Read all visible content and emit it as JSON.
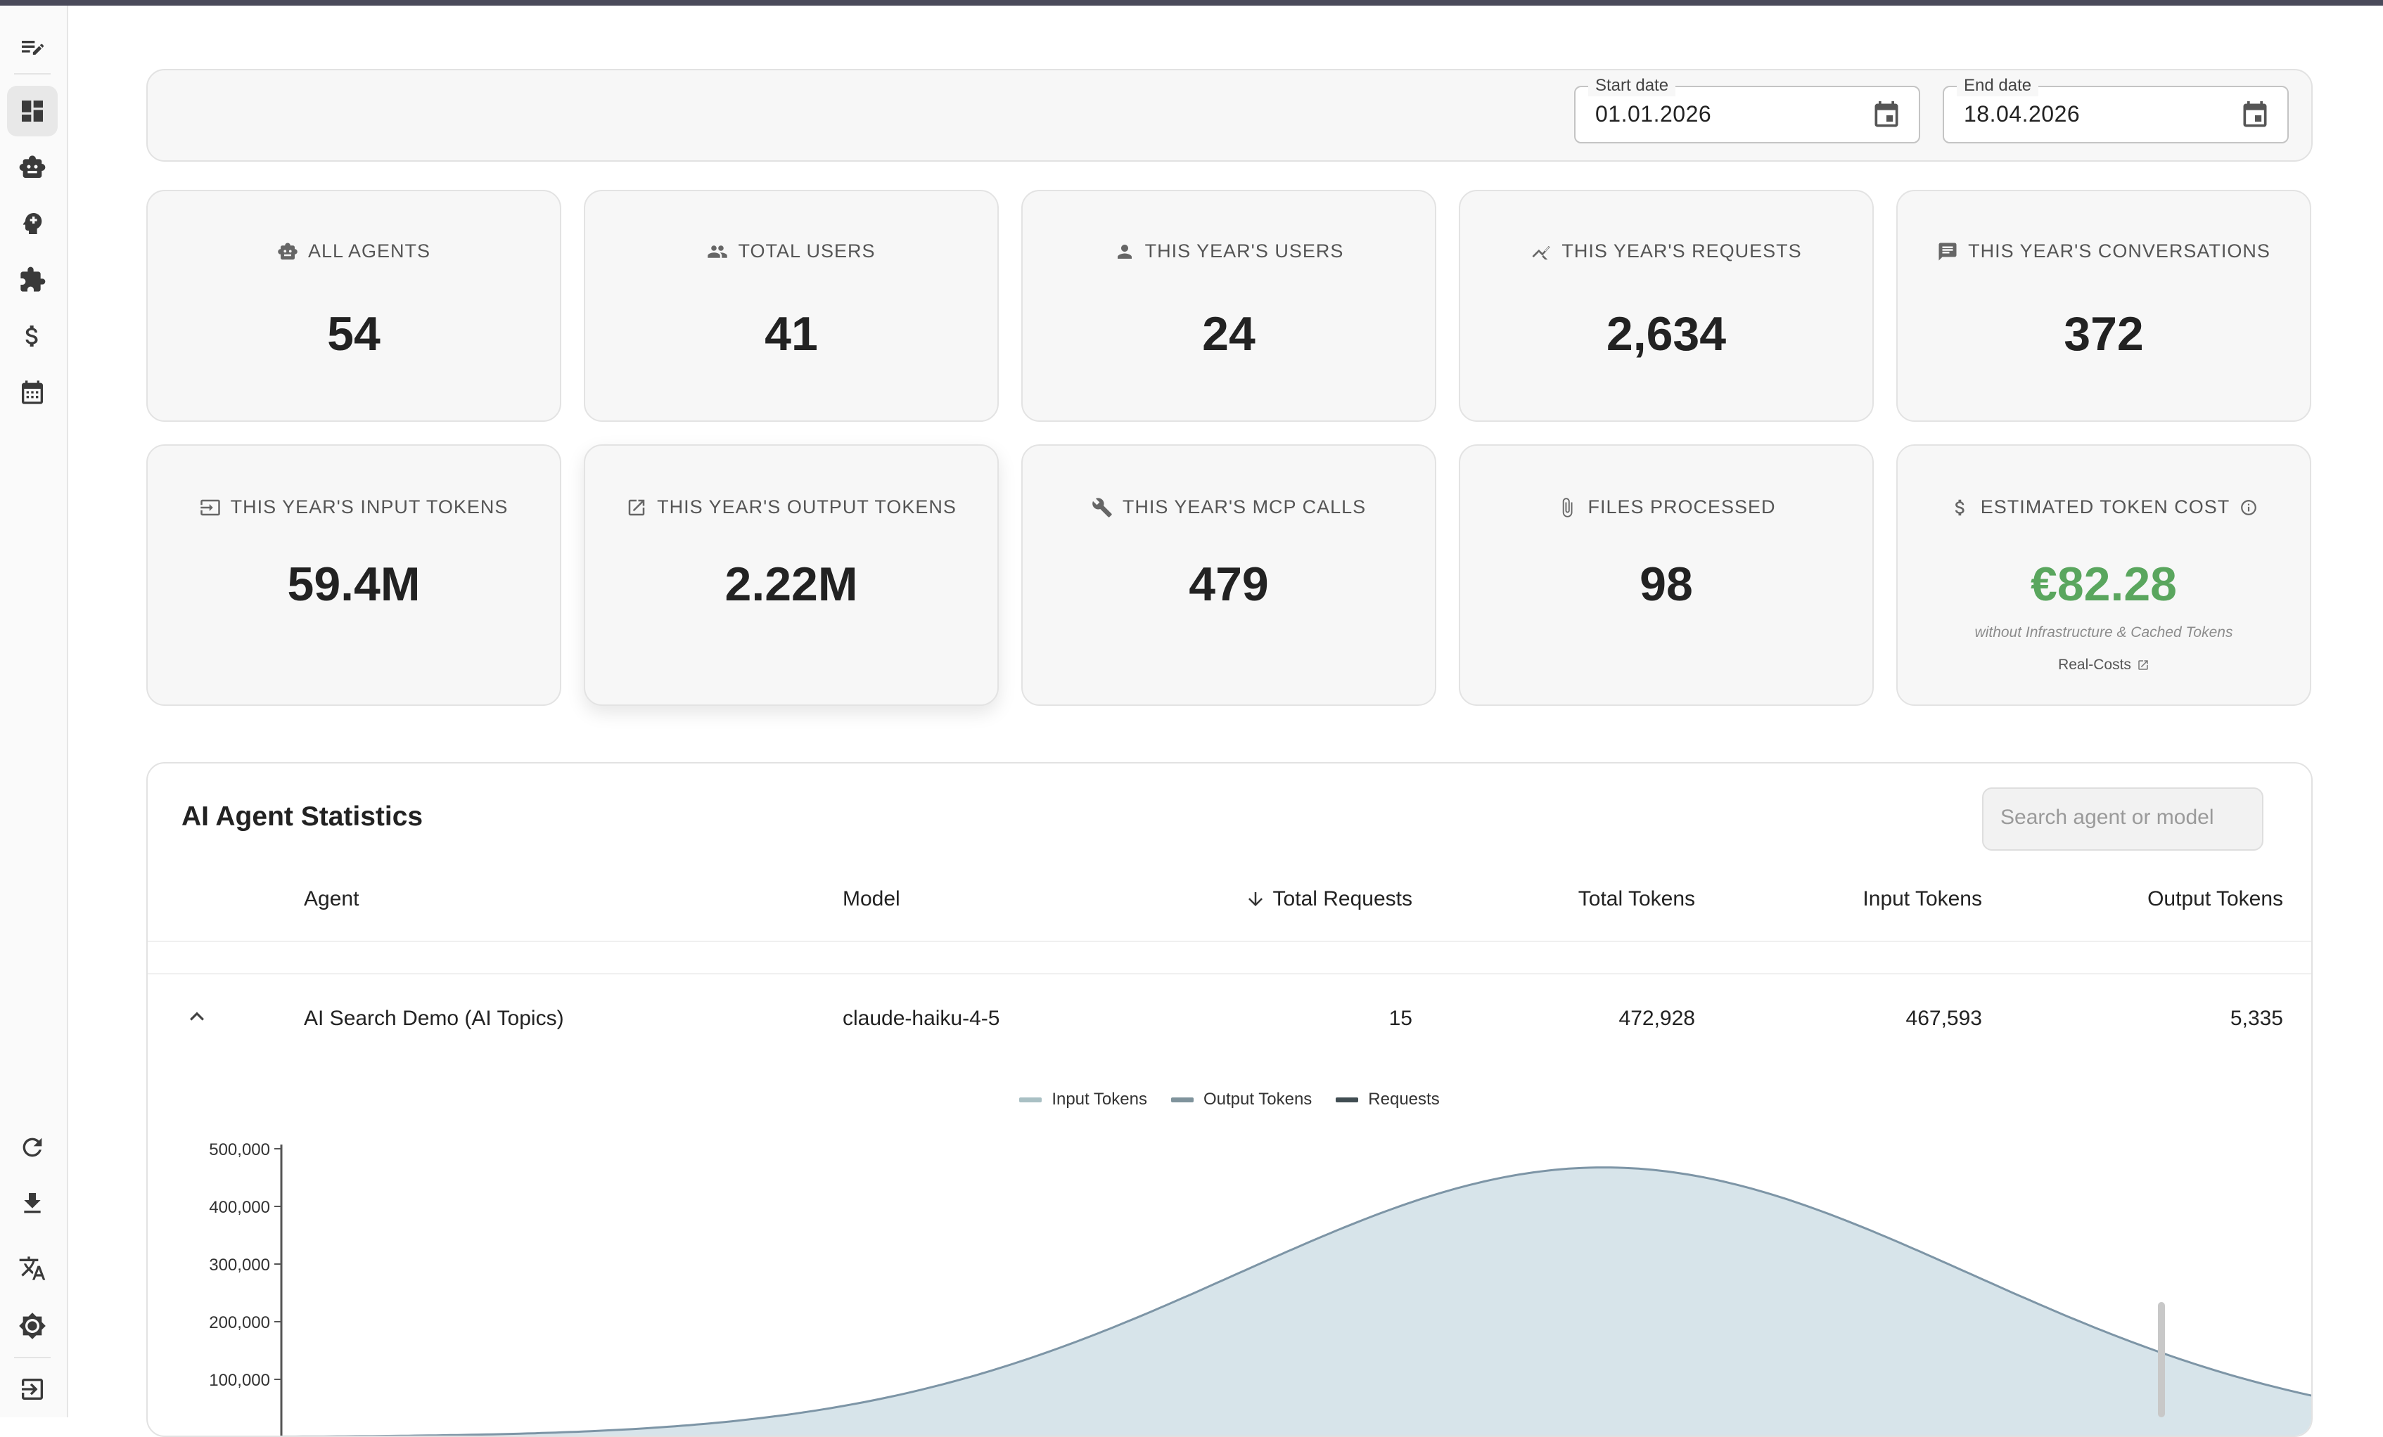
{
  "dates": {
    "start_label": "Start date",
    "start_value": "01.01.2026",
    "end_label": "End date",
    "end_value": "18.04.2026"
  },
  "cards": [
    {
      "label": "ALL AGENTS",
      "value": "54",
      "icon": "robot-icon"
    },
    {
      "label": "TOTAL USERS",
      "value": "41",
      "icon": "users-icon"
    },
    {
      "label": "THIS YEAR'S USERS",
      "value": "24",
      "icon": "user-icon"
    },
    {
      "label": "THIS YEAR'S REQUESTS",
      "value": "2,634",
      "icon": "trend-icon"
    },
    {
      "label": "THIS YEAR'S CONVERSATIONS",
      "value": "372",
      "icon": "chat-icon"
    },
    {
      "label": "THIS YEAR'S INPUT TOKENS",
      "value": "59.4M",
      "icon": "input-icon"
    },
    {
      "label": "THIS YEAR'S OUTPUT TOKENS",
      "value": "2.22M",
      "icon": "output-icon"
    },
    {
      "label": "THIS YEAR'S MCP CALLS",
      "value": "479",
      "icon": "wrench-icon"
    },
    {
      "label": "FILES PROCESSED",
      "value": "98",
      "icon": "paperclip-icon"
    },
    {
      "label": "ESTIMATED TOKEN COST",
      "value": "€82.28",
      "icon": "dollar-icon",
      "note": "without Infrastructure & Cached Tokens",
      "link": "Real-Costs",
      "accent": "#5aa65e"
    }
  ],
  "stats": {
    "title": "AI Agent Statistics",
    "search_placeholder": "Search agent or model",
    "columns": [
      "Agent",
      "Model",
      "Total Requests",
      "Total Tokens",
      "Input Tokens",
      "Output Tokens"
    ],
    "rows": [
      {
        "agent": "AI Search Demo (AI Topics)",
        "model": "claude-haiku-4-5",
        "requests": "15",
        "total_tokens": "472,928",
        "input_tokens": "467,593",
        "output_tokens": "5,335"
      }
    ]
  },
  "chart_data": {
    "type": "area",
    "legend": [
      "Input Tokens",
      "Output Tokens",
      "Requests"
    ],
    "legend_colors": [
      "#a9c0c4",
      "#7f939c",
      "#404d52"
    ],
    "y_ticks": [
      "500,000",
      "400,000",
      "300,000",
      "200,000",
      "100,000"
    ],
    "ylim": [
      0,
      500000
    ],
    "series": [
      {
        "name": "Input Tokens",
        "peak": 467593
      }
    ],
    "fill_color": "#d7e4ea",
    "line_color": "#7d95a6"
  },
  "colors": {
    "accent_green": "#5aa65e"
  }
}
